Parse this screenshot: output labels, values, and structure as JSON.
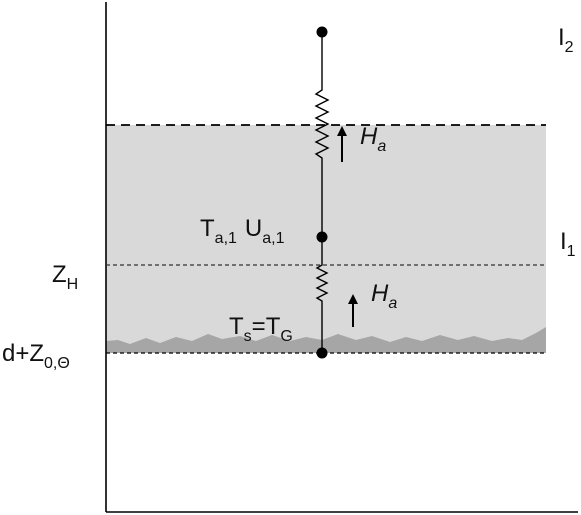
{
  "labels": {
    "layer_top": {
      "base": "I",
      "sub": "2"
    },
    "layer_mid": {
      "base": "I",
      "sub": "1"
    },
    "height_zh": {
      "base": "Z",
      "sub": "H"
    },
    "height_surface": {
      "base": "d+Z",
      "sub": "0,Θ"
    },
    "air_node": {
      "temp_base": "T",
      "temp_sub": "a,1",
      "wind_base": "U",
      "wind_sub": "a,1"
    },
    "surface_node": {
      "surface_base": "T",
      "surface_sub": "s",
      "equals": "=",
      "ground_base": "T",
      "ground_sub": "G"
    },
    "flux_upper": {
      "base": "H",
      "sub": "a"
    },
    "flux_lower": {
      "base": "H",
      "sub": "a"
    }
  },
  "colors": {
    "canopy_fill": "#d9d9d9",
    "ground_fill": "#a6a6a6",
    "line": "#000000"
  }
}
